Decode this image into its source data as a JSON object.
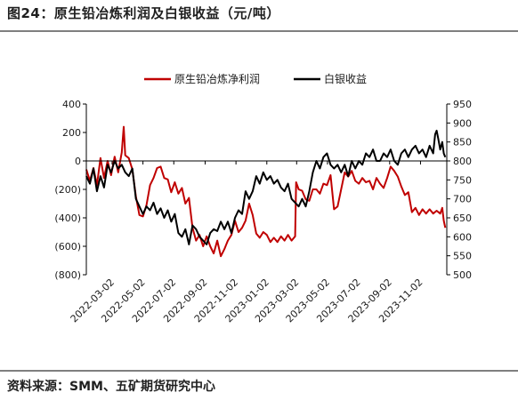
{
  "figure_title": "图24：原生铅冶炼利润及白银收益（元/吨）",
  "source": "资料来源：SMM、五矿期货研究中心",
  "chart_data": {
    "type": "line",
    "title": "",
    "x_ticks": [
      "2022-03-02",
      "2022-05-02",
      "2022-07-02",
      "2022-09-02",
      "2022-11-02",
      "2023-01-02",
      "2023-03-02",
      "2023-05-02",
      "2023-07-02",
      "2023-09-02",
      "2023-11-02"
    ],
    "x_range": [
      "2022-01-10",
      "2023-12-24"
    ],
    "left_axis": {
      "ylim": [
        -800,
        400
      ],
      "ticks": [
        400,
        200,
        0,
        -200,
        -400,
        -600,
        -800
      ],
      "tick_labels": [
        "400",
        "200",
        "0",
        "(200)",
        "(400)",
        "(600)",
        "(800)"
      ],
      "negative_color": "#c00000"
    },
    "right_axis": {
      "ylim": [
        500,
        950
      ],
      "ticks": [
        950,
        900,
        850,
        800,
        750,
        700,
        650,
        600,
        550,
        500
      ],
      "tick_labels": [
        "950",
        "900",
        "850",
        "800",
        "750",
        "700",
        "650",
        "600",
        "550",
        "500"
      ]
    },
    "legend": {
      "placement": "top"
    },
    "series": [
      {
        "name": "原生铅冶炼净利润",
        "axis": "left",
        "color": "#c00000",
        "points": [
          [
            "2022-01-10",
            -60
          ],
          [
            "2022-01-17",
            -140
          ],
          [
            "2022-01-24",
            -50
          ],
          [
            "2022-01-31",
            -170
          ],
          [
            "2022-02-07",
            20
          ],
          [
            "2022-02-14",
            -120
          ],
          [
            "2022-02-21",
            0
          ],
          [
            "2022-02-28",
            -100
          ],
          [
            "2022-03-07",
            30
          ],
          [
            "2022-03-14",
            -80
          ],
          [
            "2022-03-21",
            60
          ],
          [
            "2022-03-25",
            240
          ],
          [
            "2022-03-28",
            40
          ],
          [
            "2022-04-04",
            20
          ],
          [
            "2022-04-11",
            -60
          ],
          [
            "2022-04-18",
            -250
          ],
          [
            "2022-04-25",
            -380
          ],
          [
            "2022-05-02",
            -390
          ],
          [
            "2022-05-09",
            -310
          ],
          [
            "2022-05-16",
            -170
          ],
          [
            "2022-05-23",
            -120
          ],
          [
            "2022-05-30",
            -50
          ],
          [
            "2022-06-06",
            -40
          ],
          [
            "2022-06-13",
            -120
          ],
          [
            "2022-06-20",
            -130
          ],
          [
            "2022-06-27",
            -220
          ],
          [
            "2022-07-04",
            -150
          ],
          [
            "2022-07-11",
            -230
          ],
          [
            "2022-07-18",
            -190
          ],
          [
            "2022-07-25",
            -300
          ],
          [
            "2022-08-01",
            -260
          ],
          [
            "2022-08-08",
            -470
          ],
          [
            "2022-08-15",
            -560
          ],
          [
            "2022-08-22",
            -520
          ],
          [
            "2022-08-29",
            -600
          ],
          [
            "2022-09-05",
            -530
          ],
          [
            "2022-09-12",
            -600
          ],
          [
            "2022-09-19",
            -650
          ],
          [
            "2022-09-26",
            -560
          ],
          [
            "2022-10-03",
            -670
          ],
          [
            "2022-10-10",
            -620
          ],
          [
            "2022-10-17",
            -560
          ],
          [
            "2022-10-24",
            -520
          ],
          [
            "2022-10-31",
            -420
          ],
          [
            "2022-11-07",
            -500
          ],
          [
            "2022-11-14",
            -470
          ],
          [
            "2022-11-21",
            -420
          ],
          [
            "2022-11-28",
            -300
          ],
          [
            "2022-12-05",
            -380
          ],
          [
            "2022-12-12",
            -510
          ],
          [
            "2022-12-19",
            -540
          ],
          [
            "2022-12-26",
            -500
          ],
          [
            "2023-01-02",
            -520
          ],
          [
            "2023-01-09",
            -570
          ],
          [
            "2023-01-16",
            -540
          ],
          [
            "2023-01-23",
            -570
          ],
          [
            "2023-01-30",
            -530
          ],
          [
            "2023-02-06",
            -560
          ],
          [
            "2023-02-13",
            -520
          ],
          [
            "2023-02-20",
            -560
          ],
          [
            "2023-02-27",
            -530
          ],
          [
            "2023-03-01",
            -150
          ],
          [
            "2023-03-06",
            -200
          ],
          [
            "2023-03-13",
            -210
          ],
          [
            "2023-03-20",
            -270
          ],
          [
            "2023-03-27",
            -280
          ],
          [
            "2023-04-03",
            -200
          ],
          [
            "2023-04-10",
            -200
          ],
          [
            "2023-04-17",
            -230
          ],
          [
            "2023-04-24",
            -160
          ],
          [
            "2023-05-01",
            -170
          ],
          [
            "2023-05-08",
            -100
          ],
          [
            "2023-05-15",
            -340
          ],
          [
            "2023-05-22",
            -320
          ],
          [
            "2023-05-29",
            -200
          ],
          [
            "2023-06-05",
            -80
          ],
          [
            "2023-06-12",
            -110
          ],
          [
            "2023-06-19",
            -70
          ],
          [
            "2023-06-26",
            -140
          ],
          [
            "2023-07-03",
            -160
          ],
          [
            "2023-07-10",
            -120
          ],
          [
            "2023-07-17",
            -150
          ],
          [
            "2023-07-24",
            -140
          ],
          [
            "2023-07-31",
            -200
          ],
          [
            "2023-08-07",
            -120
          ],
          [
            "2023-08-14",
            -160
          ],
          [
            "2023-08-21",
            -190
          ],
          [
            "2023-08-28",
            -120
          ],
          [
            "2023-09-04",
            -40
          ],
          [
            "2023-09-11",
            -70
          ],
          [
            "2023-09-18",
            -110
          ],
          [
            "2023-09-25",
            -180
          ],
          [
            "2023-10-02",
            -240
          ],
          [
            "2023-10-09",
            -220
          ],
          [
            "2023-10-16",
            -360
          ],
          [
            "2023-10-23",
            -330
          ],
          [
            "2023-10-30",
            -380
          ],
          [
            "2023-11-06",
            -340
          ],
          [
            "2023-11-13",
            -370
          ],
          [
            "2023-11-20",
            -340
          ],
          [
            "2023-11-27",
            -370
          ],
          [
            "2023-12-04",
            -350
          ],
          [
            "2023-12-11",
            -370
          ],
          [
            "2023-12-15",
            -330
          ],
          [
            "2023-12-18",
            -420
          ],
          [
            "2023-12-21",
            -470
          ]
        ]
      },
      {
        "name": "白银收益",
        "axis": "right",
        "color": "#000000",
        "points": [
          [
            "2022-01-10",
            760
          ],
          [
            "2022-01-17",
            740
          ],
          [
            "2022-01-24",
            780
          ],
          [
            "2022-01-31",
            720
          ],
          [
            "2022-02-07",
            760
          ],
          [
            "2022-02-14",
            730
          ],
          [
            "2022-02-21",
            790
          ],
          [
            "2022-02-28",
            770
          ],
          [
            "2022-03-07",
            800
          ],
          [
            "2022-03-14",
            780
          ],
          [
            "2022-03-21",
            790
          ],
          [
            "2022-03-28",
            770
          ],
          [
            "2022-04-04",
            760
          ],
          [
            "2022-04-11",
            780
          ],
          [
            "2022-04-18",
            700
          ],
          [
            "2022-04-25",
            680
          ],
          [
            "2022-05-02",
            660
          ],
          [
            "2022-05-09",
            680
          ],
          [
            "2022-05-16",
            670
          ],
          [
            "2022-05-23",
            690
          ],
          [
            "2022-05-30",
            660
          ],
          [
            "2022-06-06",
            675
          ],
          [
            "2022-06-13",
            650
          ],
          [
            "2022-06-20",
            670
          ],
          [
            "2022-06-27",
            640
          ],
          [
            "2022-07-04",
            660
          ],
          [
            "2022-07-11",
            610
          ],
          [
            "2022-07-18",
            600
          ],
          [
            "2022-07-25",
            620
          ],
          [
            "2022-08-01",
            580
          ],
          [
            "2022-08-08",
            630
          ],
          [
            "2022-08-15",
            620
          ],
          [
            "2022-08-22",
            600
          ],
          [
            "2022-08-29",
            590
          ],
          [
            "2022-09-05",
            580
          ],
          [
            "2022-09-12",
            610
          ],
          [
            "2022-09-19",
            620
          ],
          [
            "2022-09-26",
            615
          ],
          [
            "2022-10-03",
            640
          ],
          [
            "2022-10-10",
            620
          ],
          [
            "2022-10-17",
            640
          ],
          [
            "2022-10-24",
            610
          ],
          [
            "2022-10-31",
            650
          ],
          [
            "2022-11-07",
            670
          ],
          [
            "2022-11-14",
            660
          ],
          [
            "2022-11-21",
            720
          ],
          [
            "2022-11-28",
            700
          ],
          [
            "2022-12-05",
            720
          ],
          [
            "2022-12-12",
            760
          ],
          [
            "2022-12-19",
            740
          ],
          [
            "2022-12-26",
            770
          ],
          [
            "2023-01-02",
            750
          ],
          [
            "2023-01-09",
            760
          ],
          [
            "2023-01-16",
            740
          ],
          [
            "2023-01-23",
            750
          ],
          [
            "2023-01-30",
            730
          ],
          [
            "2023-02-06",
            720
          ],
          [
            "2023-02-13",
            740
          ],
          [
            "2023-02-20",
            700
          ],
          [
            "2023-02-27",
            690
          ],
          [
            "2023-03-06",
            680
          ],
          [
            "2023-03-13",
            700
          ],
          [
            "2023-03-20",
            680
          ],
          [
            "2023-03-27",
            720
          ],
          [
            "2023-04-03",
            770
          ],
          [
            "2023-04-10",
            800
          ],
          [
            "2023-04-17",
            780
          ],
          [
            "2023-04-24",
            810
          ],
          [
            "2023-05-01",
            820
          ],
          [
            "2023-05-08",
            790
          ],
          [
            "2023-05-15",
            780
          ],
          [
            "2023-05-22",
            790
          ],
          [
            "2023-05-29",
            770
          ],
          [
            "2023-06-05",
            790
          ],
          [
            "2023-06-12",
            760
          ],
          [
            "2023-06-19",
            800
          ],
          [
            "2023-06-26",
            780
          ],
          [
            "2023-07-03",
            800
          ],
          [
            "2023-07-10",
            790
          ],
          [
            "2023-07-17",
            820
          ],
          [
            "2023-07-24",
            810
          ],
          [
            "2023-07-31",
            830
          ],
          [
            "2023-08-07",
            800
          ],
          [
            "2023-08-14",
            800
          ],
          [
            "2023-08-21",
            820
          ],
          [
            "2023-08-28",
            810
          ],
          [
            "2023-09-04",
            830
          ],
          [
            "2023-09-11",
            800
          ],
          [
            "2023-09-18",
            790
          ],
          [
            "2023-09-25",
            820
          ],
          [
            "2023-10-02",
            830
          ],
          [
            "2023-10-09",
            810
          ],
          [
            "2023-10-16",
            830
          ],
          [
            "2023-10-23",
            840
          ],
          [
            "2023-10-30",
            820
          ],
          [
            "2023-11-06",
            830
          ],
          [
            "2023-11-13",
            810
          ],
          [
            "2023-11-20",
            840
          ],
          [
            "2023-11-27",
            820
          ],
          [
            "2023-12-01",
            870
          ],
          [
            "2023-12-04",
            880
          ],
          [
            "2023-12-07",
            860
          ],
          [
            "2023-12-11",
            830
          ],
          [
            "2023-12-15",
            850
          ],
          [
            "2023-12-18",
            820
          ],
          [
            "2023-12-21",
            810
          ]
        ]
      }
    ]
  }
}
